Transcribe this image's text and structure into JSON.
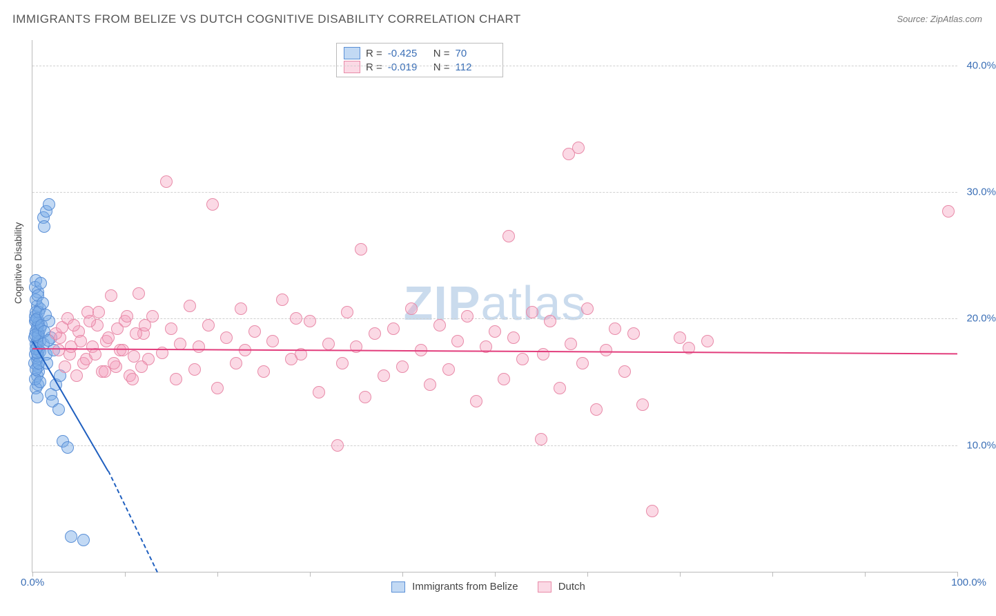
{
  "title": "IMMIGRANTS FROM BELIZE VS DUTCH COGNITIVE DISABILITY CORRELATION CHART",
  "source": "Source: ZipAtlas.com",
  "ylabel": "Cognitive Disability",
  "watermark_bold": "ZIP",
  "watermark_rest": "atlas",
  "chart": {
    "type": "scatter",
    "background_color": "#ffffff",
    "grid_color": "#d0d0d0",
    "axis_color": "#bbbbbb",
    "label_color": "#3b6fb6",
    "text_color": "#555555",
    "xlim": [
      0,
      100
    ],
    "ylim": [
      0,
      42
    ],
    "xtick_positions": [
      0,
      10,
      20,
      30,
      40,
      50,
      60,
      70,
      80,
      90,
      100
    ],
    "xtick_labels": {
      "0": "0.0%",
      "100": "100.0%"
    },
    "ytick_values": [
      10,
      20,
      30,
      40
    ],
    "ytick_labels": [
      "10.0%",
      "20.0%",
      "30.0%",
      "40.0%"
    ],
    "marker_radius": 8,
    "marker_stroke_width": 1.2,
    "trend_line_width": 2,
    "series": [
      {
        "name": "Immigrants from Belize",
        "fill_color": "rgba(120,170,230,0.45)",
        "stroke_color": "#5a8fd6",
        "trend_color": "#1f5fbf",
        "R": "-0.425",
        "N": "70",
        "trend": {
          "x1": 0,
          "y1": 18.3,
          "x2": 8.2,
          "y2": 8.0,
          "extend_dash_to_x": 13.5,
          "extend_dash_to_y": 0
        },
        "points": [
          [
            0.2,
            18.5
          ],
          [
            0.4,
            19.0
          ],
          [
            0.3,
            20.2
          ],
          [
            0.5,
            21.0
          ],
          [
            0.6,
            22.1
          ],
          [
            0.4,
            23.0
          ],
          [
            0.7,
            17.5
          ],
          [
            0.5,
            16.8
          ],
          [
            0.6,
            19.5
          ],
          [
            0.8,
            20.8
          ],
          [
            0.4,
            18.0
          ],
          [
            0.3,
            17.2
          ],
          [
            0.2,
            16.5
          ],
          [
            0.5,
            15.5
          ],
          [
            0.6,
            14.8
          ],
          [
            0.3,
            19.8
          ],
          [
            0.4,
            20.5
          ],
          [
            0.7,
            18.8
          ],
          [
            0.5,
            17.8
          ],
          [
            0.6,
            16.2
          ],
          [
            0.8,
            19.2
          ],
          [
            0.4,
            21.5
          ],
          [
            0.3,
            22.5
          ],
          [
            0.5,
            18.2
          ],
          [
            0.6,
            17.0
          ],
          [
            0.7,
            15.8
          ],
          [
            0.4,
            14.5
          ],
          [
            0.5,
            13.8
          ],
          [
            0.3,
            15.2
          ],
          [
            0.6,
            18.9
          ],
          [
            0.7,
            19.7
          ],
          [
            0.8,
            17.4
          ],
          [
            0.4,
            16.0
          ],
          [
            0.5,
            20.0
          ],
          [
            0.6,
            21.8
          ],
          [
            0.7,
            20.5
          ],
          [
            0.8,
            18.2
          ],
          [
            0.4,
            17.6
          ],
          [
            0.5,
            19.3
          ],
          [
            0.6,
            18.6
          ],
          [
            0.7,
            16.5
          ],
          [
            0.8,
            15.0
          ],
          [
            0.4,
            19.9
          ],
          [
            0.3,
            18.7
          ],
          [
            0.5,
            17.3
          ],
          [
            1.2,
            28.0
          ],
          [
            1.5,
            28.5
          ],
          [
            1.3,
            27.3
          ],
          [
            1.8,
            29.0
          ],
          [
            2.0,
            14.0
          ],
          [
            2.2,
            13.5
          ],
          [
            2.5,
            14.8
          ],
          [
            2.8,
            12.8
          ],
          [
            3.0,
            15.5
          ],
          [
            1.0,
            19.5
          ],
          [
            1.2,
            18.0
          ],
          [
            1.5,
            17.2
          ],
          [
            1.8,
            19.8
          ],
          [
            2.0,
            18.5
          ],
          [
            2.3,
            17.5
          ],
          [
            3.3,
            10.3
          ],
          [
            3.8,
            9.8
          ],
          [
            4.2,
            2.8
          ],
          [
            5.5,
            2.5
          ],
          [
            1.4,
            20.3
          ],
          [
            1.6,
            16.5
          ],
          [
            1.1,
            21.2
          ],
          [
            0.9,
            22.8
          ],
          [
            1.3,
            19.0
          ],
          [
            1.7,
            18.3
          ]
        ]
      },
      {
        "name": "Dutch",
        "fill_color": "rgba(245,160,190,0.40)",
        "stroke_color": "#e88aa8",
        "trend_color": "#e23d7c",
        "R": "-0.019",
        "N": "112",
        "trend": {
          "x1": 0,
          "y1": 17.7,
          "x2": 100,
          "y2": 17.3
        },
        "points": [
          [
            3,
            18.5
          ],
          [
            4,
            17.2
          ],
          [
            5,
            19.0
          ],
          [
            5.5,
            16.5
          ],
          [
            6,
            20.5
          ],
          [
            6.5,
            17.8
          ],
          [
            7,
            19.5
          ],
          [
            7.5,
            15.8
          ],
          [
            8,
            18.2
          ],
          [
            8.5,
            21.8
          ],
          [
            9,
            16.2
          ],
          [
            9.5,
            17.5
          ],
          [
            10,
            19.8
          ],
          [
            10.5,
            15.5
          ],
          [
            11,
            17.0
          ],
          [
            11.5,
            22.0
          ],
          [
            12,
            18.8
          ],
          [
            12.5,
            16.8
          ],
          [
            13,
            20.2
          ],
          [
            14,
            17.3
          ],
          [
            14.5,
            30.8
          ],
          [
            15,
            19.2
          ],
          [
            15.5,
            15.2
          ],
          [
            16,
            18.0
          ],
          [
            17,
            21.0
          ],
          [
            17.5,
            16.0
          ],
          [
            18,
            17.8
          ],
          [
            19,
            19.5
          ],
          [
            19.5,
            29.0
          ],
          [
            20,
            14.5
          ],
          [
            21,
            18.5
          ],
          [
            22,
            16.5
          ],
          [
            22.5,
            20.8
          ],
          [
            23,
            17.5
          ],
          [
            24,
            19.0
          ],
          [
            25,
            15.8
          ],
          [
            26,
            18.2
          ],
          [
            27,
            21.5
          ],
          [
            28,
            16.8
          ],
          [
            28.5,
            20.0
          ],
          [
            29,
            17.2
          ],
          [
            30,
            19.8
          ],
          [
            31,
            14.2
          ],
          [
            32,
            18.0
          ],
          [
            33,
            10.0
          ],
          [
            33.5,
            16.5
          ],
          [
            34,
            20.5
          ],
          [
            35,
            17.8
          ],
          [
            35.5,
            25.5
          ],
          [
            36,
            13.8
          ],
          [
            37,
            18.8
          ],
          [
            38,
            15.5
          ],
          [
            39,
            19.2
          ],
          [
            40,
            16.2
          ],
          [
            41,
            20.8
          ],
          [
            42,
            17.5
          ],
          [
            43,
            14.8
          ],
          [
            44,
            19.5
          ],
          [
            45,
            16.0
          ],
          [
            46,
            18.2
          ],
          [
            47,
            20.2
          ],
          [
            48,
            13.5
          ],
          [
            49,
            17.8
          ],
          [
            50,
            19.0
          ],
          [
            51,
            15.2
          ],
          [
            51.5,
            26.5
          ],
          [
            52,
            18.5
          ],
          [
            53,
            16.8
          ],
          [
            54,
            20.5
          ],
          [
            55,
            10.5
          ],
          [
            55.2,
            17.2
          ],
          [
            56,
            19.8
          ],
          [
            57,
            14.5
          ],
          [
            58,
            33.0
          ],
          [
            58.2,
            18.0
          ],
          [
            59,
            33.5
          ],
          [
            59.5,
            16.5
          ],
          [
            60,
            20.8
          ],
          [
            61,
            12.8
          ],
          [
            62,
            17.5
          ],
          [
            63,
            19.2
          ],
          [
            64,
            15.8
          ],
          [
            65,
            18.8
          ],
          [
            66,
            13.2
          ],
          [
            67,
            4.8
          ],
          [
            70,
            18.5
          ],
          [
            71,
            17.7
          ],
          [
            73,
            18.2
          ],
          [
            99,
            28.5
          ],
          [
            2.5,
            18.8
          ],
          [
            2.8,
            17.5
          ],
          [
            3.2,
            19.3
          ],
          [
            3.5,
            16.2
          ],
          [
            3.8,
            20.0
          ],
          [
            4.2,
            17.8
          ],
          [
            4.5,
            19.5
          ],
          [
            4.8,
            15.5
          ],
          [
            5.2,
            18.2
          ],
          [
            5.8,
            16.8
          ],
          [
            6.2,
            19.8
          ],
          [
            6.8,
            17.2
          ],
          [
            7.2,
            20.5
          ],
          [
            7.8,
            15.8
          ],
          [
            8.2,
            18.5
          ],
          [
            8.8,
            16.5
          ],
          [
            9.2,
            19.2
          ],
          [
            9.8,
            17.5
          ],
          [
            10.2,
            20.2
          ],
          [
            10.8,
            15.2
          ],
          [
            11.2,
            18.8
          ],
          [
            11.8,
            16.2
          ],
          [
            12.2,
            19.5
          ]
        ]
      }
    ]
  },
  "bottom_legend": [
    {
      "label": "Immigrants from Belize",
      "fill": "rgba(120,170,230,0.45)",
      "stroke": "#5a8fd6"
    },
    {
      "label": "Dutch",
      "fill": "rgba(245,160,190,0.40)",
      "stroke": "#e88aa8"
    }
  ]
}
